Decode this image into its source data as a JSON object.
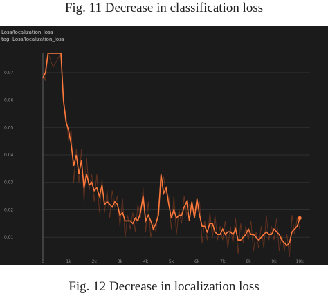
{
  "captions": {
    "top": "Fig. 11  Decrease in classification loss",
    "bottom": "Fig. 12  Decrease in localization loss"
  },
  "chart_data": {
    "type": "line",
    "title": "Loss/localization_loss",
    "subtitle": "tag: Loss/localization_loss",
    "xlabel": "",
    "ylabel": "",
    "x_ticks": [
      0,
      1000,
      2000,
      3000,
      4000,
      5000,
      6000,
      7000,
      8000,
      9000,
      10000
    ],
    "x_tick_labels": [
      "0",
      "1k",
      "2k",
      "3k",
      "4k",
      "5k",
      "6k",
      "7k",
      "8k",
      "9k",
      "10k"
    ],
    "y_ticks": [
      0.01,
      0.02,
      0.03,
      0.04,
      0.05,
      0.06,
      0.07
    ],
    "y_tick_labels": [
      "0.01",
      "0.02",
      "0.03",
      "0.04",
      "0.05",
      "0.06",
      "0.07"
    ],
    "xlim": [
      0,
      10400
    ],
    "ylim": [
      0.002,
      0.077
    ],
    "grid": true,
    "colors": {
      "smoothed": "#ff7a3c",
      "raw": "#7a3a22",
      "background": "#1b1b1b",
      "grid": "#2f2f2f"
    },
    "series": [
      {
        "x": [
          0,
          100,
          200,
          400,
          700,
          800,
          900,
          1000,
          1100,
          1200,
          1300,
          1400,
          1500,
          1600,
          1700,
          1800,
          1900,
          2000,
          2100,
          2200,
          2300,
          2400,
          2500,
          2600,
          2700,
          2800,
          2900,
          3000,
          3100,
          3200,
          3300,
          3400,
          3500,
          3600,
          3700,
          3800,
          3900,
          4000,
          4100,
          4200,
          4300,
          4400,
          4500,
          4600,
          4700,
          4800,
          4900,
          5000,
          5100,
          5200,
          5300,
          5400,
          5500,
          5600,
          5700,
          5800,
          5900,
          6000,
          6100,
          6200,
          6300,
          6400,
          6500,
          6600,
          6700,
          6800,
          6900,
          7000,
          7100,
          7200,
          7300,
          7400,
          7500,
          7600,
          7700,
          7800,
          7900,
          8000,
          8100,
          8200,
          8300,
          8400,
          8500,
          8600,
          8700,
          8800,
          8900,
          9000,
          9100,
          9200,
          9300,
          9400,
          9500,
          9600,
          9700,
          9800,
          9900,
          10000
        ],
        "y": [
          0.068,
          0.07,
          0.077,
          0.077,
          0.077,
          0.06,
          0.052,
          0.049,
          0.044,
          0.036,
          0.04,
          0.033,
          0.038,
          0.028,
          0.033,
          0.029,
          0.03,
          0.027,
          0.028,
          0.025,
          0.029,
          0.022,
          0.023,
          0.022,
          0.021,
          0.023,
          0.022,
          0.018,
          0.019,
          0.016,
          0.016,
          0.016,
          0.015,
          0.017,
          0.016,
          0.019,
          0.025,
          0.016,
          0.018,
          0.016,
          0.013,
          0.015,
          0.018,
          0.033,
          0.026,
          0.028,
          0.022,
          0.017,
          0.02,
          0.017,
          0.018,
          0.018,
          0.021,
          0.023,
          0.016,
          0.023,
          0.017,
          0.024,
          0.018,
          0.014,
          0.014,
          0.012,
          0.015,
          0.015,
          0.012,
          0.011,
          0.011,
          0.013,
          0.011,
          0.012,
          0.012,
          0.011,
          0.013,
          0.009,
          0.009,
          0.01,
          0.011,
          0.013,
          0.011,
          0.011,
          0.01,
          0.009,
          0.01,
          0.011,
          0.012,
          0.011,
          0.011,
          0.013,
          0.012,
          0.011,
          0.009,
          0.008,
          0.007,
          0.008,
          0.012,
          0.013,
          0.014,
          0.017
        ]
      }
    ]
  }
}
